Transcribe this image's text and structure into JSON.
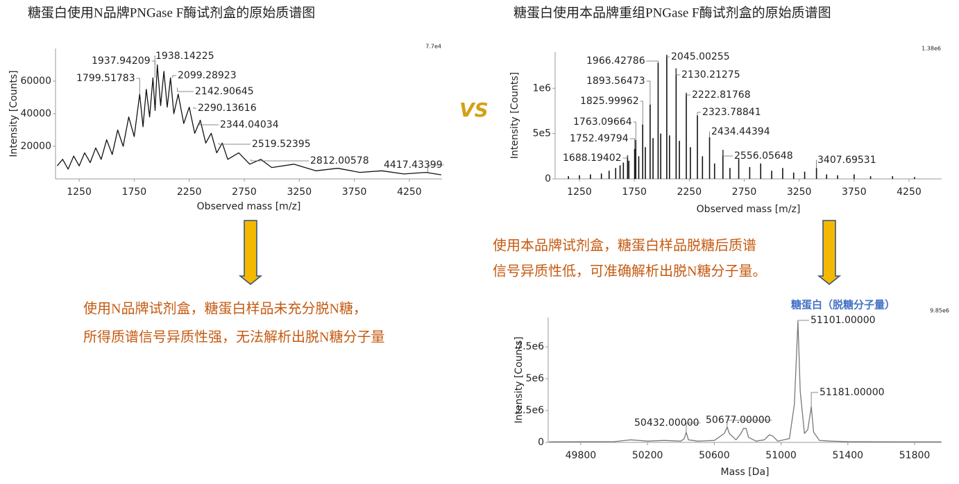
{
  "comparison_label": "VS",
  "notes": [
    [
      "使用N品牌试剂盒，糖蛋白样品未充分脱N糖，",
      "所得质谱信号异质性强，无法解析出脱N糖分子量"
    ],
    [
      "使用本品牌试剂盒，糖蛋白样品脱糖后质谱",
      "信号异质性低，可准确解析出脱N糖分子量。"
    ]
  ],
  "chart_data": [
    {
      "type": "line",
      "title": "糖蛋白使用N品牌PNGase F酶试剂盒的原始质谱图",
      "x_label": "Observed mass [m/z]",
      "y_label": "Intensity [Counts]",
      "scale_label": "7.7e4",
      "color": "#111111",
      "xlim": [
        1035,
        4547
      ],
      "ylim": [
        0,
        80000
      ],
      "xticks": [
        1250,
        1750,
        2250,
        2750,
        3250,
        3750,
        4250
      ],
      "yticks": [
        20000,
        40000,
        60000
      ],
      "x": [
        1050,
        1100,
        1150,
        1200,
        1250,
        1300,
        1350,
        1400,
        1450,
        1500,
        1550,
        1600,
        1650,
        1700,
        1750,
        1800,
        1830,
        1860,
        1890,
        1920,
        1940,
        1960,
        1990,
        2020,
        2050,
        2080,
        2110,
        2150,
        2200,
        2250,
        2300,
        2350,
        2400,
        2450,
        2500,
        2550,
        2600,
        2700,
        2800,
        2900,
        3000,
        3200,
        3400,
        3600,
        3800,
        4000,
        4200,
        4400,
        4540
      ],
      "values": [
        8000,
        12000,
        6000,
        14000,
        8000,
        16000,
        10000,
        19000,
        12000,
        24000,
        15000,
        30000,
        20000,
        38000,
        26000,
        52000,
        32000,
        55000,
        38000,
        62000,
        42000,
        70000,
        45000,
        66000,
        44000,
        62000,
        40000,
        52000,
        34000,
        44000,
        28000,
        36000,
        22000,
        28000,
        16000,
        22000,
        12000,
        16000,
        9000,
        12000,
        7000,
        9000,
        5000,
        6500,
        4000,
        5000,
        3000,
        4000,
        2500
      ],
      "annotations": {
        "x": [
          1799.51783,
          1937.94209,
          1938.14225,
          2099.28923,
          2142.90645,
          2290.13616,
          2344.04034,
          2519.52395,
          2812.00578,
          4417.43399
        ],
        "values": [
          52000,
          62000,
          70000,
          62000,
          56000,
          44000,
          36000,
          22000,
          12000,
          4000
        ]
      }
    },
    {
      "type": "stem",
      "title": "糖蛋白使用本品牌重组PNGase F酶试剂盒的原始质谱图",
      "x_label": "Observed mass [m/z]",
      "y_label": "Intensity [Counts]",
      "scale_label": "1.38e6",
      "color": "#111111",
      "xlim": [
        1029,
        4547
      ],
      "ylim": [
        0,
        1400000
      ],
      "xticks": [
        1250,
        1750,
        2250,
        2750,
        3250,
        3750,
        4250
      ],
      "yticks": [
        0,
        {
          "value": 500000,
          "label": "5e5"
        },
        {
          "value": 1000000,
          "label": "1e6"
        }
      ],
      "x": [
        1150,
        1250,
        1350,
        1450,
        1520,
        1580,
        1620,
        1650,
        1688.19402,
        1700,
        1752.49794,
        1763.09664,
        1790,
        1825.99962,
        1850,
        1893.56473,
        1920,
        1966.42786,
        1990,
        2045.00255,
        2070,
        2130.21275,
        2160,
        2222.81768,
        2260,
        2323.78841,
        2370,
        2434.44394,
        2480,
        2556.05648,
        2620,
        2700,
        2800,
        2900,
        3000,
        3100,
        3200,
        3300,
        3407.69531,
        3500,
        3600,
        3750,
        3900,
        4100,
        4300
      ],
      "values": [
        30000,
        40000,
        50000,
        60000,
        90000,
        120000,
        150000,
        180000,
        260000,
        200000,
        330000,
        430000,
        250000,
        600000,
        350000,
        820000,
        450000,
        1280000,
        500000,
        1370000,
        480000,
        1220000,
        420000,
        950000,
        350000,
        700000,
        250000,
        460000,
        170000,
        320000,
        120000,
        220000,
        130000,
        170000,
        90000,
        120000,
        70000,
        80000,
        120000,
        50000,
        40000,
        50000,
        30000,
        30000,
        20000
      ],
      "annotations": {
        "x": [
          1688.19402,
          1752.49794,
          1763.09664,
          1825.99962,
          1893.56473,
          1966.42786,
          2045.00255,
          2130.21275,
          2222.81768,
          2323.78841,
          2434.44394,
          2556.05648,
          3407.69531
        ],
        "values": [
          260000,
          330000,
          430000,
          600000,
          820000,
          1280000,
          1370000,
          1220000,
          950000,
          700000,
          460000,
          320000,
          120000
        ]
      }
    },
    {
      "type": "line",
      "title": "糖蛋白（脱糖分子量）",
      "x_label": "Mass [Da]",
      "y_label": "Intensity [Counts]",
      "scale_label": "9.85e6",
      "color": "#777777",
      "xlim": [
        49605,
        51962
      ],
      "ylim": [
        0,
        9800000
      ],
      "xticks": [
        49800,
        50200,
        50600,
        51000,
        51400,
        51800
      ],
      "yticks": [
        0,
        {
          "value": 2500000,
          "label": "2.5e6"
        },
        {
          "value": 5000000,
          "label": "5e6"
        },
        {
          "value": 7500000,
          "label": "7.5e6"
        }
      ],
      "x": [
        49610,
        50000,
        50100,
        50200,
        50300,
        50400,
        50420,
        50432,
        50445,
        50500,
        50600,
        50660,
        50677,
        50690,
        50730,
        50760,
        50775,
        50790,
        50805,
        50850,
        50900,
        50930,
        50950,
        50980,
        51050,
        51080,
        51101,
        51115,
        51140,
        51160,
        51181,
        51195,
        51230,
        51300,
        51400,
        51600,
        51960
      ],
      "values": [
        50000,
        60000,
        200000,
        100000,
        150000,
        100000,
        300000,
        800000,
        200000,
        100000,
        150000,
        700000,
        1200000,
        700000,
        200000,
        700000,
        1100000,
        1100000,
        400000,
        100000,
        200000,
        600000,
        500000,
        100000,
        300000,
        3000000,
        9500000,
        4000000,
        700000,
        1000000,
        2800000,
        800000,
        150000,
        100000,
        60000,
        50000,
        40000
      ],
      "annotations": {
        "x": [
          50432,
          50677,
          51101,
          51181
        ],
        "x_labels": [
          "50432.00000",
          "50677.00000",
          "51101.00000",
          "51181.00000"
        ],
        "values": [
          800000,
          1200000,
          9500000,
          2800000
        ]
      }
    }
  ]
}
